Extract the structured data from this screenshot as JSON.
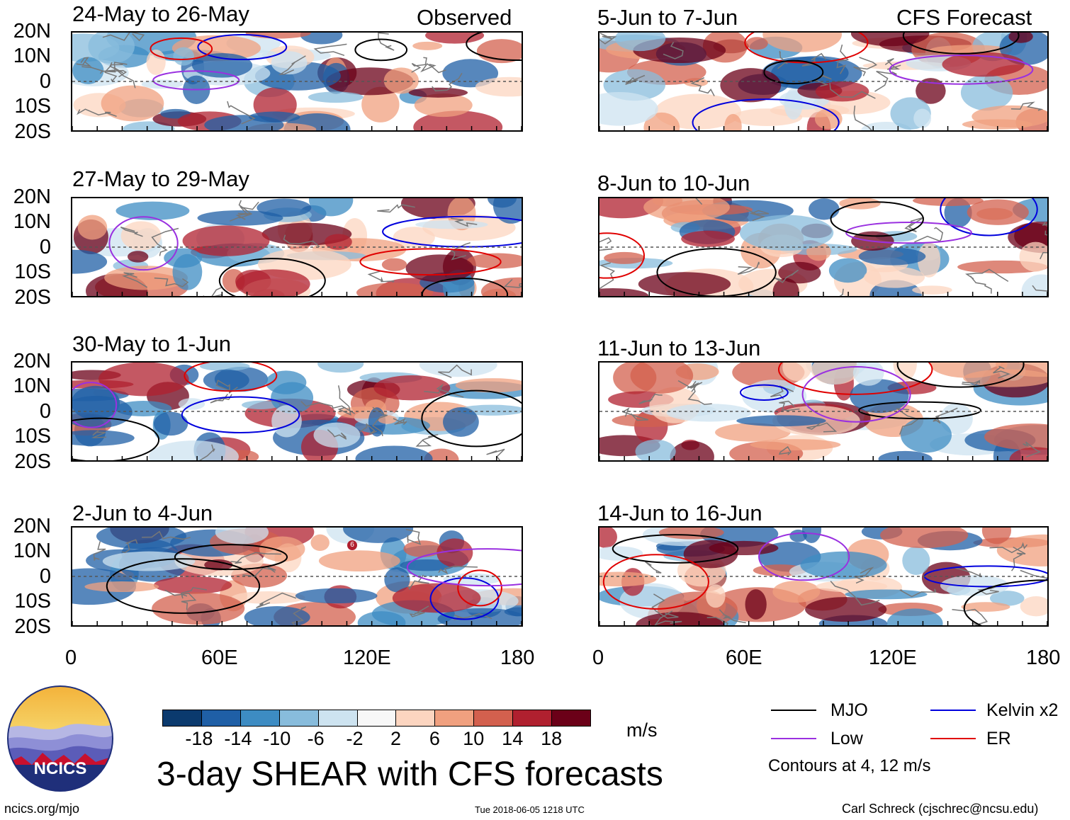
{
  "header": {
    "observed_label": "Observed",
    "forecast_label": "CFS Forecast"
  },
  "panels": [
    {
      "title": "24-May to 26-May"
    },
    {
      "title": "27-May to 29-May"
    },
    {
      "title": "30-May to 1-Jun"
    },
    {
      "title": "2-Jun to 4-Jun",
      "storm_marker": "6"
    },
    {
      "title": "5-Jun to 7-Jun"
    },
    {
      "title": "8-Jun to 10-Jun"
    },
    {
      "title": "11-Jun to 13-Jun"
    },
    {
      "title": "14-Jun to 16-Jun"
    }
  ],
  "axes": {
    "lat_labels": [
      "20N",
      "10N",
      "0",
      "10S",
      "20S"
    ],
    "lon_labels": [
      "0",
      "60E",
      "120E",
      "180"
    ]
  },
  "colorbar": {
    "unit": "m/s",
    "labels": [
      "-18",
      "-14",
      "-10",
      "-6",
      "-2",
      "2",
      "6",
      "10",
      "14",
      "18"
    ],
    "colors": [
      "#0b3a6e",
      "#1f5fa6",
      "#3d8cc3",
      "#88bcdc",
      "#cde3f0",
      "#f7f7f7",
      "#fcd5c0",
      "#f0a07f",
      "#d3604e",
      "#b0202f",
      "#6b0018"
    ]
  },
  "legend": {
    "items": [
      {
        "label": "MJO",
        "color": "#000000"
      },
      {
        "label": "Kelvin x2",
        "color": "#0000dd"
      },
      {
        "label": "Low",
        "color": "#9a30e0"
      },
      {
        "label": "ER",
        "color": "#e00000"
      }
    ],
    "note": "Contours at 4, 12 m/s"
  },
  "footer": {
    "title": "3-day SHEAR with CFS forecasts",
    "logo_text": "NCICS",
    "website": "ncics.org/mjo",
    "timestamp": "Tue 2018-06-05 1218 UTC",
    "author": "Carl Schreck (cjschrec@ncsu.edu)"
  }
}
